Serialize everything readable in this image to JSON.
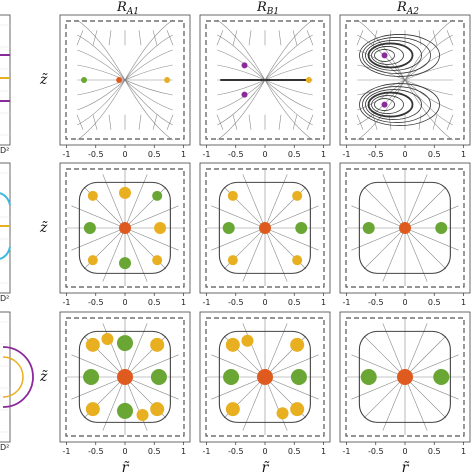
{
  "column_titles": [
    "R_A1",
    "R_B1",
    "R_A2"
  ],
  "column_title_parts": [
    {
      "base": "R",
      "sub": "A1"
    },
    {
      "base": "R",
      "sub": "B1"
    },
    {
      "base": "R",
      "sub": "A2"
    }
  ],
  "axis": {
    "xlabel": "r̃",
    "ylabel": "z̃",
    "xticks": [
      "-1",
      "-0.5",
      "0",
      "0.5",
      "1"
    ],
    "xtick_values": [
      -1,
      -0.5,
      0,
      0.5,
      1
    ],
    "left_partial_tick": "D²"
  },
  "colors": {
    "orange_red": "#de5a1f",
    "green": "#6aa634",
    "yellow": "#e8b020",
    "purple": "#8a2a9b",
    "cyan": "#3fb8e0",
    "stream": "#777777"
  },
  "chart_data": [
    {
      "type": "scatter",
      "row": 1,
      "col": 1,
      "title": "R_A1",
      "xlim": [
        -1,
        1
      ],
      "ylim": [
        -1,
        1
      ],
      "points": [
        {
          "x": -0.7,
          "y": 0,
          "color": "green",
          "size": 3
        },
        {
          "x": -0.1,
          "y": 0,
          "color": "orange_red",
          "size": 3
        },
        {
          "x": 0.72,
          "y": 0,
          "color": "yellow",
          "size": 3
        }
      ]
    },
    {
      "type": "scatter",
      "row": 1,
      "col": 2,
      "title": "R_B1",
      "xlim": [
        -1,
        1
      ],
      "ylim": [
        -1,
        1
      ],
      "points": [
        {
          "x": -0.35,
          "y": 0.25,
          "color": "purple",
          "size": 3
        },
        {
          "x": -0.35,
          "y": -0.25,
          "color": "purple",
          "size": 3
        },
        {
          "x": 0.75,
          "y": 0,
          "color": "yellow",
          "size": 3
        }
      ]
    },
    {
      "type": "scatter",
      "row": 1,
      "col": 3,
      "title": "R_A2",
      "xlim": [
        -1,
        1
      ],
      "ylim": [
        -1,
        1
      ],
      "points": [
        {
          "x": -0.35,
          "y": 0.42,
          "color": "purple",
          "size": 3
        },
        {
          "x": -0.35,
          "y": -0.42,
          "color": "purple",
          "size": 3
        }
      ]
    },
    {
      "type": "scatter",
      "row": 2,
      "col": 1,
      "xlim": [
        -1,
        1
      ],
      "ylim": [
        -1,
        1
      ],
      "points": [
        {
          "x": 0,
          "y": 0,
          "color": "orange_red",
          "size": 6
        },
        {
          "x": -0.6,
          "y": 0,
          "color": "green",
          "size": 6
        },
        {
          "x": 0.6,
          "y": 0,
          "color": "yellow",
          "size": 6
        },
        {
          "x": 0,
          "y": 0.6,
          "color": "yellow",
          "size": 6
        },
        {
          "x": 0,
          "y": -0.6,
          "color": "green",
          "size": 6
        },
        {
          "x": -0.55,
          "y": 0.55,
          "color": "yellow",
          "size": 5
        },
        {
          "x": 0.55,
          "y": 0.55,
          "color": "green",
          "size": 5
        },
        {
          "x": -0.55,
          "y": -0.55,
          "color": "yellow",
          "size": 5
        },
        {
          "x": 0.55,
          "y": -0.55,
          "color": "yellow",
          "size": 5
        }
      ]
    },
    {
      "type": "scatter",
      "row": 2,
      "col": 2,
      "xlim": [
        -1,
        1
      ],
      "ylim": [
        -1,
        1
      ],
      "points": [
        {
          "x": 0,
          "y": 0,
          "color": "orange_red",
          "size": 6
        },
        {
          "x": -0.62,
          "y": 0,
          "color": "green",
          "size": 6
        },
        {
          "x": 0.62,
          "y": 0,
          "color": "green",
          "size": 6
        },
        {
          "x": -0.55,
          "y": 0.55,
          "color": "yellow",
          "size": 5
        },
        {
          "x": 0.55,
          "y": 0.55,
          "color": "yellow",
          "size": 5
        },
        {
          "x": -0.55,
          "y": -0.55,
          "color": "yellow",
          "size": 5
        },
        {
          "x": 0.55,
          "y": -0.55,
          "color": "yellow",
          "size": 5
        }
      ]
    },
    {
      "type": "scatter",
      "row": 2,
      "col": 3,
      "xlim": [
        -1,
        1
      ],
      "ylim": [
        -1,
        1
      ],
      "points": [
        {
          "x": 0,
          "y": 0,
          "color": "orange_red",
          "size": 6
        },
        {
          "x": -0.62,
          "y": 0,
          "color": "green",
          "size": 6
        },
        {
          "x": 0.62,
          "y": 0,
          "color": "green",
          "size": 6
        }
      ]
    },
    {
      "type": "scatter",
      "row": 3,
      "col": 1,
      "xlim": [
        -1,
        1
      ],
      "ylim": [
        -1,
        1
      ],
      "points": [
        {
          "x": 0,
          "y": 0,
          "color": "orange_red",
          "size": 8
        },
        {
          "x": -0.58,
          "y": 0,
          "color": "green",
          "size": 8
        },
        {
          "x": 0.58,
          "y": 0,
          "color": "green",
          "size": 8
        },
        {
          "x": 0,
          "y": 0.58,
          "color": "green",
          "size": 8
        },
        {
          "x": 0,
          "y": -0.58,
          "color": "green",
          "size": 8
        },
        {
          "x": -0.55,
          "y": 0.55,
          "color": "yellow",
          "size": 7
        },
        {
          "x": 0.55,
          "y": 0.55,
          "color": "yellow",
          "size": 7
        },
        {
          "x": -0.55,
          "y": -0.55,
          "color": "yellow",
          "size": 7
        },
        {
          "x": 0.55,
          "y": -0.55,
          "color": "yellow",
          "size": 7
        },
        {
          "x": -0.3,
          "y": 0.65,
          "color": "yellow",
          "size": 6
        },
        {
          "x": 0.3,
          "y": -0.65,
          "color": "yellow",
          "size": 6
        }
      ]
    },
    {
      "type": "scatter",
      "row": 3,
      "col": 2,
      "xlim": [
        -1,
        1
      ],
      "ylim": [
        -1,
        1
      ],
      "points": [
        {
          "x": 0,
          "y": 0,
          "color": "orange_red",
          "size": 8
        },
        {
          "x": -0.58,
          "y": 0,
          "color": "green",
          "size": 8
        },
        {
          "x": 0.58,
          "y": 0,
          "color": "green",
          "size": 8
        },
        {
          "x": -0.55,
          "y": 0.55,
          "color": "yellow",
          "size": 7
        },
        {
          "x": 0.55,
          "y": 0.55,
          "color": "yellow",
          "size": 7
        },
        {
          "x": -0.55,
          "y": -0.55,
          "color": "yellow",
          "size": 7
        },
        {
          "x": 0.55,
          "y": -0.55,
          "color": "yellow",
          "size": 7
        },
        {
          "x": -0.3,
          "y": 0.62,
          "color": "yellow",
          "size": 6
        },
        {
          "x": 0.3,
          "y": -0.62,
          "color": "yellow",
          "size": 6
        }
      ]
    },
    {
      "type": "scatter",
      "row": 3,
      "col": 3,
      "xlim": [
        -1,
        1
      ],
      "ylim": [
        -1,
        1
      ],
      "points": [
        {
          "x": 0,
          "y": 0,
          "color": "orange_red",
          "size": 8
        },
        {
          "x": -0.62,
          "y": 0,
          "color": "green",
          "size": 8
        },
        {
          "x": 0.62,
          "y": 0,
          "color": "green",
          "size": 8
        }
      ]
    }
  ]
}
